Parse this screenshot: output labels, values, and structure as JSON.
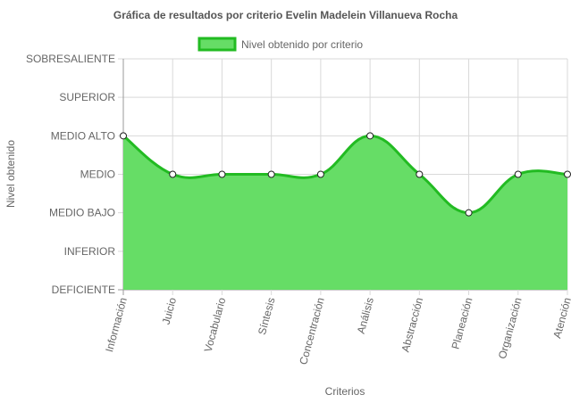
{
  "chart_data": {
    "type": "area",
    "title": "Gráfica de resultados por criterio Evelin Madelein Villanueva Rocha",
    "xlabel": "Criterios",
    "ylabel": "Nivel obtenido",
    "y_levels": [
      "DEFICIENTE",
      "INFERIOR",
      "MEDIO BAJO",
      "MEDIO",
      "MEDIO ALTO",
      "SUPERIOR",
      "SOBRESALIENTE"
    ],
    "categories": [
      "Información",
      "Juicio",
      "Vocabulario",
      "Síntesis",
      "Concentración",
      "Análisis",
      "Abstracción",
      "Planeación",
      "Organización",
      "Atención"
    ],
    "series": [
      {
        "name": "Nivel obtenido por criterio",
        "values": [
          "MEDIO ALTO",
          "MEDIO",
          "MEDIO",
          "MEDIO",
          "MEDIO",
          "MEDIO ALTO",
          "MEDIO",
          "MEDIO BAJO",
          "MEDIO",
          "MEDIO"
        ],
        "fill_color": "#66dd66",
        "line_color": "#22bb22"
      }
    ],
    "grid": true,
    "legend_position": "top-center"
  }
}
